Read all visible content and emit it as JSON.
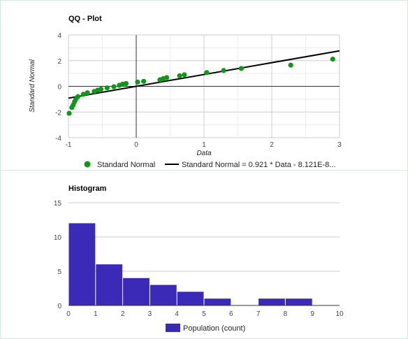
{
  "chart_data": [
    {
      "type": "scatter",
      "title": "QQ - Plot",
      "xlabel": "Data",
      "ylabel": "Standard Normal",
      "xlim": [
        -1,
        3
      ],
      "ylim": [
        -4,
        4
      ],
      "xticks": [
        -1,
        0,
        1,
        2,
        3
      ],
      "yticks": [
        -4,
        -2,
        0,
        2,
        4
      ],
      "grid": true,
      "legend_position": "bottom",
      "series": [
        {
          "name": "Standard Normal",
          "kind": "points",
          "color": "#109618",
          "points": [
            [
              -0.99,
              -2.1
            ],
            [
              -0.95,
              -1.65
            ],
            [
              -0.93,
              -1.45
            ],
            [
              -0.91,
              -1.2
            ],
            [
              -0.89,
              -1.0
            ],
            [
              -0.86,
              -0.8
            ],
            [
              -0.78,
              -0.62
            ],
            [
              -0.72,
              -0.5
            ],
            [
              -0.62,
              -0.4
            ],
            [
              -0.57,
              -0.3
            ],
            [
              -0.52,
              -0.22
            ],
            [
              -0.43,
              -0.12
            ],
            [
              -0.33,
              -0.03
            ],
            [
              -0.25,
              0.08
            ],
            [
              -0.2,
              0.17
            ],
            [
              -0.15,
              0.22
            ],
            [
              0.02,
              0.33
            ],
            [
              0.11,
              0.39
            ],
            [
              0.35,
              0.51
            ],
            [
              0.4,
              0.6
            ],
            [
              0.45,
              0.68
            ],
            [
              0.64,
              0.82
            ],
            [
              0.71,
              0.9
            ],
            [
              1.04,
              1.07
            ],
            [
              1.29,
              1.23
            ],
            [
              1.55,
              1.39
            ],
            [
              2.28,
              1.65
            ],
            [
              2.9,
              2.12
            ]
          ]
        },
        {
          "name": "Standard Normal = 0.921 * Data - 8.121E-8...",
          "kind": "line",
          "color": "#000000",
          "slope": 0.921,
          "intercept": -8.121e-08
        }
      ]
    },
    {
      "type": "bar",
      "title": "Histogram",
      "xlim": [
        0,
        10
      ],
      "ylim": [
        0,
        15
      ],
      "xticks": [
        0,
        1,
        2,
        3,
        4,
        5,
        6,
        7,
        8,
        9,
        10
      ],
      "yticks": [
        0,
        5,
        10,
        15
      ],
      "grid": true,
      "legend_position": "bottom",
      "color": "#3b2ab8",
      "bins": [
        {
          "from": 0,
          "to": 1,
          "value": 12
        },
        {
          "from": 1,
          "to": 2,
          "value": 6
        },
        {
          "from": 2,
          "to": 3,
          "value": 4
        },
        {
          "from": 3,
          "to": 4,
          "value": 3
        },
        {
          "from": 4,
          "to": 5,
          "value": 2
        },
        {
          "from": 5,
          "to": 6,
          "value": 1
        },
        {
          "from": 6,
          "to": 7,
          "value": 0
        },
        {
          "from": 7,
          "to": 8,
          "value": 1
        },
        {
          "from": 8,
          "to": 9,
          "value": 1
        }
      ],
      "series": [
        {
          "name": "Population (count)"
        }
      ]
    }
  ]
}
